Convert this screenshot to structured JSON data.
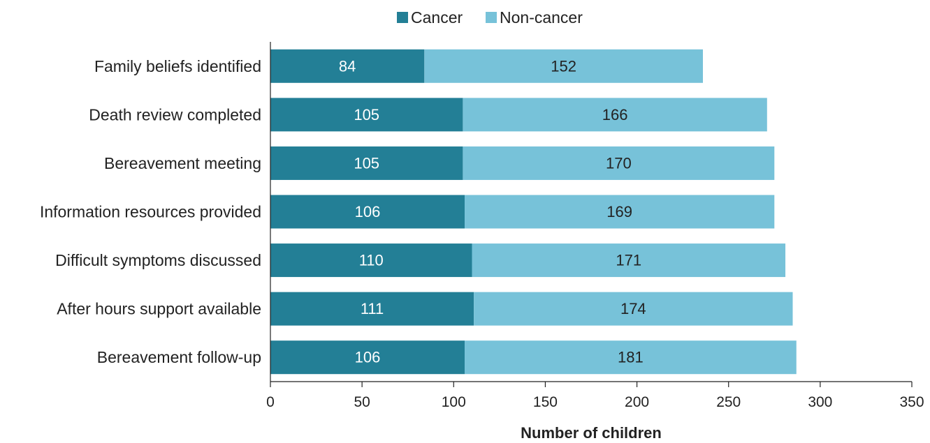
{
  "chart_data": {
    "type": "bar",
    "orientation": "horizontal",
    "stacked": true,
    "categories": [
      "Family beliefs identified",
      "Death review completed",
      "Bereavement meeting",
      "Information resources provided",
      "Difficult symptoms discussed",
      "After hours support available",
      "Bereavement follow-up"
    ],
    "series": [
      {
        "name": "Cancer",
        "color": "#237f96",
        "label_color": "#ffffff",
        "values": [
          84,
          105,
          105,
          106,
          110,
          111,
          106
        ]
      },
      {
        "name": "Non-cancer",
        "color": "#77c2d9",
        "label_color": "#222222",
        "values": [
          152,
          166,
          170,
          169,
          171,
          174,
          181
        ]
      }
    ],
    "title": "",
    "xlabel": "Number of children",
    "ylabel": "",
    "xlim": [
      0,
      350
    ],
    "xticks": [
      "0",
      "50",
      "100",
      "150",
      "200",
      "250",
      "300",
      "350"
    ],
    "grid": false,
    "legend_position": "top-center"
  }
}
